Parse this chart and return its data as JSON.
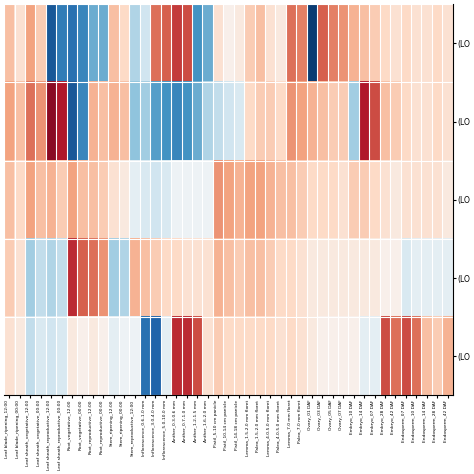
{
  "y_labels": [
    "(LO",
    "(LO",
    "(LO",
    "(LO",
    "(LO"
  ],
  "x_labels": [
    "Leaf blade_ripening_12:00",
    "Leaf blade_ripening_00:00",
    "Leaf sheath_vegetative_12:00",
    "Leaf sheath_vegetative_00:00",
    "Leaf sheath_reproductive_12:00",
    "Leaf sheath_reproductive_00:00",
    "Root_vegetative_12:00",
    "Root_vegetative_00:00",
    "Root_reproductive_12:00",
    "Root_reproductive_00:00",
    "Stem_ripening_12:00",
    "Stem_ripening_00:00",
    "Stem_reproductive_12:00",
    "Inflorescence_0.6-1.0 mm",
    "Inflorescence_3.0-4.0 mm",
    "Inflorescence_5.0-10.0 mm",
    "Anther_0.3-0.6 mm",
    "Anther_0.7-1.0 mm",
    "Anther_1.2-1.5 mm",
    "Anther_1.6-2.0 mm",
    "Pistil_5-10 cm panicle",
    "Pistil_10-14 cm panicle",
    "Pistil_14-18 cm panicle",
    "Lemma_1.5-2.0 mm floret",
    "Palea_1.5-2.0 mm floret",
    "Lemma_4.0-5.0 mm floret",
    "Palea_4.0-5.0 mm floret",
    "Lemma_7.0 mm floret",
    "Palea_7.0 mm floret",
    "Ovary_01 DAF",
    "Ovary_03 DAF",
    "Ovary_05 DAF",
    "Ovary_07 DAF",
    "Embryo_10 DAF",
    "Embryo_14 DAF",
    "Embryo_07 DAF",
    "Embryo_28 DAF",
    "Embryo_42 DAF",
    "Endosperm_07 DAF",
    "Endosperm_10 DAF",
    "Endosperm_14 DAF",
    "Endosperm_28 DAF",
    "Endosperm_42 DAF"
  ],
  "data": [
    [
      0.3,
      0.15,
      0.4,
      0.25,
      -0.85,
      -0.7,
      -0.75,
      -0.65,
      -0.5,
      -0.5,
      0.3,
      0.2,
      -0.3,
      -0.2,
      0.55,
      0.6,
      0.7,
      0.65,
      -0.6,
      -0.5,
      0.15,
      0.05,
      0.1,
      0.25,
      0.3,
      0.15,
      0.1,
      0.55,
      0.5,
      -0.95,
      0.6,
      0.5,
      0.45,
      0.35,
      0.3,
      0.25,
      0.2,
      0.15,
      0.2,
      0.15,
      0.15,
      0.2,
      0.15
    ],
    [
      0.4,
      0.3,
      0.55,
      0.45,
      0.9,
      0.8,
      -0.85,
      -0.65,
      0.35,
      0.3,
      0.35,
      0.3,
      -0.4,
      -0.35,
      -0.55,
      -0.6,
      -0.65,
      -0.6,
      -0.5,
      -0.3,
      -0.25,
      -0.2,
      -0.15,
      0.2,
      0.25,
      0.25,
      0.2,
      0.45,
      0.4,
      0.35,
      0.3,
      0.25,
      0.25,
      -0.35,
      0.8,
      0.65,
      0.3,
      0.25,
      0.2,
      0.15,
      0.15,
      0.2,
      0.15
    ],
    [
      0.3,
      0.2,
      0.4,
      0.3,
      0.35,
      0.25,
      0.4,
      0.3,
      0.3,
      0.25,
      0.15,
      0.1,
      -0.1,
      -0.15,
      -0.2,
      -0.15,
      -0.05,
      -0.05,
      -0.05,
      -0.05,
      0.45,
      0.4,
      0.35,
      0.4,
      0.4,
      0.35,
      0.3,
      0.3,
      0.25,
      0.2,
      0.2,
      0.2,
      0.15,
      0.25,
      0.25,
      0.2,
      0.15,
      0.1,
      0.15,
      0.15,
      0.15,
      0.15,
      0.1
    ],
    [
      0.25,
      0.15,
      -0.35,
      -0.25,
      -0.3,
      -0.25,
      0.75,
      0.6,
      0.55,
      0.45,
      -0.35,
      -0.3,
      0.35,
      0.3,
      0.25,
      0.2,
      0.2,
      0.15,
      0.15,
      0.15,
      0.35,
      0.3,
      0.25,
      0.3,
      0.3,
      0.25,
      0.2,
      0.2,
      0.15,
      0.1,
      0.1,
      0.1,
      0.1,
      0.1,
      0.1,
      0.1,
      0.05,
      0.05,
      -0.15,
      -0.1,
      -0.1,
      -0.1,
      -0.1
    ],
    [
      0.15,
      0.1,
      -0.25,
      -0.15,
      -0.2,
      -0.15,
      0.1,
      0.05,
      0.1,
      0.05,
      -0.1,
      -0.05,
      -0.05,
      -0.75,
      -0.8,
      -0.1,
      0.75,
      0.75,
      0.65,
      0.15,
      0.25,
      0.2,
      0.2,
      0.2,
      0.2,
      0.2,
      0.15,
      0.2,
      0.15,
      0.1,
      0.05,
      0.05,
      0.05,
      0.05,
      -0.1,
      -0.1,
      0.65,
      0.55,
      0.65,
      0.55,
      0.3,
      0.25,
      0.35
    ]
  ],
  "vmin": -1.0,
  "vmax": 1.0,
  "cmap": "RdBu_r",
  "figsize": [
    4.74,
    4.74
  ],
  "dpi": 100
}
